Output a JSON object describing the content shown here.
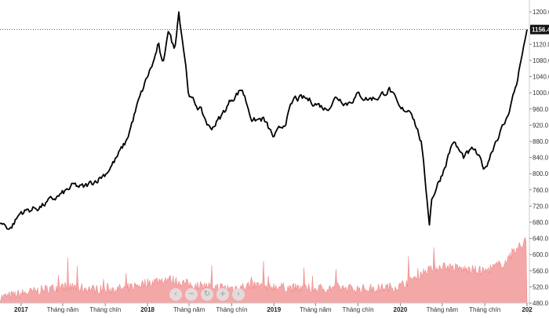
{
  "chart_data": {
    "type": "line",
    "x_label_format": "year-month",
    "y_ticks": [
      "1200.0",
      "1160.0",
      "1120.0",
      "1080.0",
      "1040.0",
      "1000.0",
      "960.0",
      "920.0",
      "880.0",
      "840.0",
      "800.0",
      "760.0",
      "720.0",
      "680.0",
      "640.0",
      "600.0",
      "560.0",
      "520.0",
      "480.0"
    ],
    "ylim": [
      480,
      1210
    ],
    "x_ticks": [
      {
        "label": "2017",
        "date": "2017-01",
        "bold": true
      },
      {
        "label": "Tháng năm",
        "date": "2017-05",
        "bold": false
      },
      {
        "label": "Tháng chín",
        "date": "2017-09",
        "bold": false
      },
      {
        "label": "2018",
        "date": "2018-01",
        "bold": true
      },
      {
        "label": "Tháng năm",
        "date": "2018-05",
        "bold": false
      },
      {
        "label": "Tháng chín",
        "date": "2018-09",
        "bold": false
      },
      {
        "label": "2019",
        "date": "2019-01",
        "bold": true
      },
      {
        "label": "Tháng năm",
        "date": "2019-05",
        "bold": false
      },
      {
        "label": "Tháng chín",
        "date": "2019-09",
        "bold": false
      },
      {
        "label": "2020",
        "date": "2020-01",
        "bold": true
      },
      {
        "label": "Tháng năm",
        "date": "2020-05",
        "bold": false
      },
      {
        "label": "Tháng chín",
        "date": "2020-09",
        "bold": false
      },
      {
        "label": "202",
        "date": "2021-01",
        "bold": true
      }
    ],
    "x_start": "2016-11",
    "x_end": "2021-01",
    "last_value_label": "1156.4",
    "last_value": 1156.4,
    "price_series": {
      "dates": [
        "2016-11",
        "2016-12",
        "2017-01",
        "2017-02",
        "2017-03",
        "2017-04",
        "2017-05",
        "2017-06",
        "2017-07",
        "2017-08",
        "2017-09",
        "2017-10",
        "2017-11",
        "2017-12",
        "2018-01",
        "2018-01-20",
        "2018-02",
        "2018-02-15",
        "2018-03",
        "2018-03-20",
        "2018-04",
        "2018-04-20",
        "2018-05",
        "2018-06",
        "2018-07",
        "2018-08",
        "2018-09",
        "2018-10",
        "2018-11",
        "2018-12",
        "2019-01",
        "2019-02",
        "2019-03",
        "2019-04",
        "2019-05",
        "2019-06",
        "2019-07",
        "2019-08",
        "2019-09",
        "2019-10",
        "2019-11",
        "2019-12",
        "2020-01",
        "2020-02",
        "2020-03",
        "2020-03-25",
        "2020-04",
        "2020-05",
        "2020-06",
        "2020-07",
        "2020-08",
        "2020-09",
        "2020-10",
        "2020-11",
        "2020-12",
        "2021-01"
      ],
      "values": [
        680,
        665,
        705,
        712,
        720,
        735,
        750,
        770,
        765,
        782,
        800,
        835,
        880,
        965,
        1040,
        1080,
        1120,
        1060,
        1160,
        1105,
        1205,
        1080,
        990,
        960,
        910,
        940,
        985,
        1010,
        930,
        935,
        888,
        925,
        985,
        985,
        975,
        960,
        990,
        975,
        995,
        985,
        990,
        1010,
        955,
        960,
        880,
        680,
        740,
        800,
        880,
        840,
        860,
        810,
        880,
        930,
        1020,
        1156.4
      ]
    },
    "volume_series": {
      "ylim": [
        480,
        680
      ],
      "dates": [
        "2016-11",
        "2017-01",
        "2017-03",
        "2017-05",
        "2017-07",
        "2017-09",
        "2017-11",
        "2018-01",
        "2018-03",
        "2018-05",
        "2018-07",
        "2018-09",
        "2018-11",
        "2019-01",
        "2019-03",
        "2019-05",
        "2019-07",
        "2019-09",
        "2019-11",
        "2020-01",
        "2020-03",
        "2020-05",
        "2020-07",
        "2020-09",
        "2020-11",
        "2021-01"
      ],
      "values": [
        495,
        505,
        515,
        525,
        520,
        515,
        520,
        535,
        545,
        530,
        525,
        520,
        528,
        525,
        520,
        518,
        522,
        518,
        520,
        525,
        560,
        580,
        570,
        565,
        590,
        650
      ],
      "color": "#f08a8a"
    },
    "line_color": "#000000",
    "grid": false,
    "y_axis_position": "right"
  },
  "toolbar": {
    "prev": "‹",
    "zoom_out": "−",
    "reset": "↻",
    "zoom_in": "+",
    "next": "›"
  }
}
